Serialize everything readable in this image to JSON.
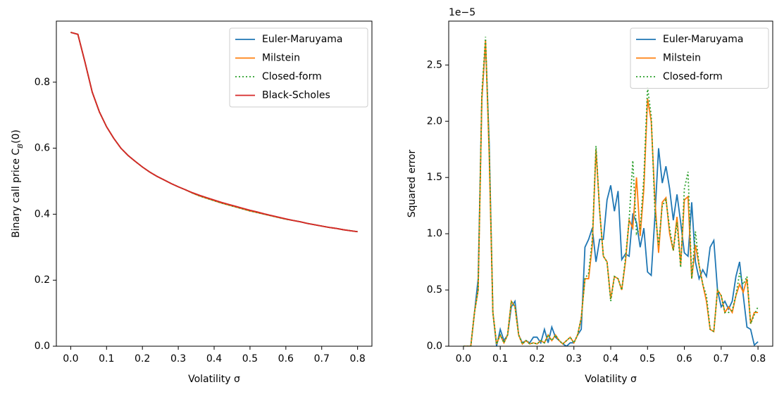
{
  "chart_data": [
    {
      "type": "line",
      "xlabel": "Volatility σ",
      "ylabel": "Binary call price C",
      "ylabel_subscript": "B",
      "ylabel_suffix": "(0)",
      "xlim": [
        -0.04,
        0.84
      ],
      "ylim": [
        0,
        0.985
      ],
      "xticks": [
        {
          "value": 0,
          "label": "0.0"
        },
        {
          "value": 0.1,
          "label": "0.1"
        },
        {
          "value": 0.2,
          "label": "0.2"
        },
        {
          "value": 0.3,
          "label": "0.3"
        },
        {
          "value": 0.4,
          "label": "0.4"
        },
        {
          "value": 0.5,
          "label": "0.5"
        },
        {
          "value": 0.6,
          "label": "0.6"
        },
        {
          "value": 0.7,
          "label": "0.7"
        },
        {
          "value": 0.8,
          "label": "0.8"
        }
      ],
      "yticks": [
        {
          "value": 0,
          "label": "0.0"
        },
        {
          "value": 0.2,
          "label": "0.2"
        },
        {
          "value": 0.4,
          "label": "0.4"
        },
        {
          "value": 0.6,
          "label": "0.6"
        },
        {
          "value": 0.8,
          "label": "0.8"
        }
      ],
      "legend": "upper right",
      "x": [
        0,
        0.02,
        0.04,
        0.06,
        0.08,
        0.1,
        0.12,
        0.14,
        0.16,
        0.18,
        0.2,
        0.22,
        0.24,
        0.26,
        0.28,
        0.3,
        0.32,
        0.34,
        0.36,
        0.38,
        0.4,
        0.42,
        0.44,
        0.46,
        0.48,
        0.5,
        0.52,
        0.54,
        0.56,
        0.58,
        0.6,
        0.62,
        0.64,
        0.66,
        0.68,
        0.7,
        0.72,
        0.74,
        0.76,
        0.78,
        0.8
      ],
      "series": [
        {
          "name": "Euler-Maruyama",
          "color": "#1f77b4",
          "dash": "solid",
          "values": [
            0.951,
            0.945,
            0.86,
            0.77,
            0.71,
            0.665,
            0.63,
            0.6,
            0.578,
            0.56,
            0.543,
            0.528,
            0.515,
            0.504,
            0.493,
            0.483,
            0.474,
            0.464,
            0.455,
            0.448,
            0.441,
            0.434,
            0.428,
            0.422,
            0.416,
            0.41,
            0.405,
            0.4,
            0.395,
            0.39,
            0.385,
            0.381,
            0.377,
            0.372,
            0.368,
            0.364,
            0.36,
            0.357,
            0.353,
            0.35,
            0.347
          ]
        },
        {
          "name": "Milstein",
          "color": "#ff7f0e",
          "dash": "solid",
          "values": [
            0.951,
            0.945,
            0.86,
            0.77,
            0.71,
            0.665,
            0.63,
            0.6,
            0.578,
            0.56,
            0.543,
            0.528,
            0.515,
            0.504,
            0.493,
            0.483,
            0.474,
            0.464,
            0.455,
            0.448,
            0.441,
            0.434,
            0.428,
            0.422,
            0.416,
            0.41,
            0.405,
            0.4,
            0.395,
            0.39,
            0.385,
            0.381,
            0.377,
            0.372,
            0.368,
            0.364,
            0.36,
            0.357,
            0.353,
            0.35,
            0.347
          ]
        },
        {
          "name": "Closed-form",
          "color": "#2ca02c",
          "dash": "dotted",
          "values": [
            0.951,
            0.945,
            0.86,
            0.77,
            0.71,
            0.665,
            0.63,
            0.6,
            0.578,
            0.56,
            0.543,
            0.528,
            0.515,
            0.504,
            0.493,
            0.483,
            0.474,
            0.464,
            0.455,
            0.448,
            0.441,
            0.434,
            0.428,
            0.422,
            0.416,
            0.41,
            0.405,
            0.4,
            0.395,
            0.39,
            0.385,
            0.381,
            0.377,
            0.372,
            0.368,
            0.364,
            0.36,
            0.357,
            0.353,
            0.35,
            0.347
          ]
        },
        {
          "name": "Black-Scholes",
          "color": "#d62728",
          "dash": "solid",
          "values": [
            0.951,
            0.945,
            0.86,
            0.77,
            0.71,
            0.665,
            0.63,
            0.6,
            0.578,
            0.56,
            0.543,
            0.528,
            0.515,
            0.504,
            0.493,
            0.483,
            0.474,
            0.465,
            0.457,
            0.45,
            0.443,
            0.436,
            0.43,
            0.424,
            0.418,
            0.412,
            0.407,
            0.401,
            0.396,
            0.391,
            0.386,
            0.381,
            0.377,
            0.372,
            0.368,
            0.364,
            0.36,
            0.357,
            0.353,
            0.35,
            0.347
          ]
        }
      ]
    },
    {
      "type": "line",
      "xlabel": "Volatility σ",
      "ylabel": "Squared error",
      "offset_text": "1e−5",
      "xlim": [
        -0.04,
        0.84
      ],
      "ylim": [
        0,
        2.89
      ],
      "xticks": [
        {
          "value": 0,
          "label": "0.0"
        },
        {
          "value": 0.1,
          "label": "0.1"
        },
        {
          "value": 0.2,
          "label": "0.2"
        },
        {
          "value": 0.3,
          "label": "0.3"
        },
        {
          "value": 0.4,
          "label": "0.4"
        },
        {
          "value": 0.5,
          "label": "0.5"
        },
        {
          "value": 0.6,
          "label": "0.6"
        },
        {
          "value": 0.7,
          "label": "0.7"
        },
        {
          "value": 0.8,
          "label": "0.8"
        }
      ],
      "yticks": [
        {
          "value": 0,
          "label": "0.0"
        },
        {
          "value": 0.5,
          "label": "0.5"
        },
        {
          "value": 1,
          "label": "1.0"
        },
        {
          "value": 1.5,
          "label": "1.5"
        },
        {
          "value": 2,
          "label": "2.0"
        },
        {
          "value": 2.5,
          "label": "2.5"
        }
      ],
      "legend": "upper right",
      "x": [
        0,
        0.01,
        0.02,
        0.03,
        0.04,
        0.05,
        0.06,
        0.07,
        0.08,
        0.09,
        0.1,
        0.11,
        0.12,
        0.13,
        0.14,
        0.15,
        0.16,
        0.17,
        0.18,
        0.19,
        0.2,
        0.21,
        0.22,
        0.23,
        0.24,
        0.25,
        0.26,
        0.27,
        0.28,
        0.29,
        0.3,
        0.31,
        0.32,
        0.33,
        0.34,
        0.35,
        0.36,
        0.37,
        0.38,
        0.39,
        0.4,
        0.41,
        0.42,
        0.43,
        0.44,
        0.45,
        0.46,
        0.47,
        0.48,
        0.49,
        0.5,
        0.51,
        0.52,
        0.53,
        0.54,
        0.55,
        0.56,
        0.57,
        0.58,
        0.59,
        0.6,
        0.61,
        0.62,
        0.63,
        0.64,
        0.65,
        0.66,
        0.67,
        0.68,
        0.69,
        0.7,
        0.71,
        0.72,
        0.73,
        0.74,
        0.75,
        0.76,
        0.77,
        0.78,
        0.79,
        0.8
      ],
      "series": [
        {
          "name": "Euler-Maruyama",
          "color": "#1f77b4",
          "dash": "solid",
          "values": [
            0,
            0,
            0,
            0.3,
            0.6,
            2.2,
            2.7,
            1.8,
            0.3,
            0,
            0.15,
            0.05,
            0.1,
            0.35,
            0.4,
            0.1,
            0.03,
            0.05,
            0.03,
            0.08,
            0.08,
            0.03,
            0.15,
            0.03,
            0.17,
            0.08,
            0.05,
            0.02,
            0,
            0.03,
            0.03,
            0.1,
            0.15,
            0.88,
            0.95,
            1.05,
            0.75,
            0.95,
            0.95,
            1.3,
            1.43,
            1.2,
            1.38,
            0.77,
            0.82,
            0.8,
            1.18,
            1.1,
            0.88,
            1.05,
            0.66,
            0.63,
            1.15,
            1.76,
            1.45,
            1.6,
            1.4,
            1.12,
            1.35,
            1.1,
            0.83,
            0.8,
            1.28,
            0.75,
            0.6,
            0.68,
            0.62,
            0.88,
            0.94,
            0.5,
            0.35,
            0.4,
            0.33,
            0.4,
            0.62,
            0.75,
            0.45,
            0.17,
            0.15,
            0.01,
            0.04
          ]
        },
        {
          "name": "Milstein",
          "color": "#ff7f0e",
          "dash": "solid",
          "values": [
            0,
            0,
            0,
            0.3,
            0.5,
            2.2,
            2.72,
            1.7,
            0.3,
            0.02,
            0.1,
            0.03,
            0.1,
            0.4,
            0.35,
            0.1,
            0.02,
            0.05,
            0.02,
            0.03,
            0.02,
            0.05,
            0.03,
            0.1,
            0.05,
            0.1,
            0.05,
            0.02,
            0.05,
            0.08,
            0.03,
            0.1,
            0.25,
            0.6,
            0.6,
            0.9,
            1.75,
            1.2,
            0.8,
            0.75,
            0.42,
            0.62,
            0.6,
            0.5,
            0.75,
            1.12,
            1.05,
            1.5,
            0.98,
            1.4,
            2.2,
            2.0,
            1.3,
            0.83,
            1.28,
            1.32,
            1.0,
            0.85,
            1.15,
            0.72,
            1.3,
            1.33,
            0.6,
            0.9,
            0.72,
            0.55,
            0.4,
            0.15,
            0.13,
            0.5,
            0.45,
            0.3,
            0.35,
            0.3,
            0.45,
            0.55,
            0.48,
            0.6,
            0.2,
            0.3,
            0.3
          ]
        },
        {
          "name": "Closed-form",
          "color": "#2ca02c",
          "dash": "dotted",
          "values": [
            0,
            0,
            0,
            0.3,
            0.5,
            2.25,
            2.75,
            1.75,
            0.3,
            0.02,
            0.1,
            0.03,
            0.1,
            0.4,
            0.35,
            0.1,
            0.02,
            0.05,
            0.02,
            0.03,
            0.02,
            0.05,
            0.03,
            0.1,
            0.05,
            0.1,
            0.05,
            0.02,
            0.05,
            0.08,
            0.03,
            0.1,
            0.25,
            0.6,
            0.65,
            0.95,
            1.78,
            1.2,
            0.8,
            0.75,
            0.4,
            0.62,
            0.6,
            0.5,
            0.78,
            1.12,
            1.65,
            1.0,
            1.05,
            1.5,
            2.3,
            2.05,
            1.2,
            0.9,
            1.25,
            1.3,
            1.05,
            0.85,
            1.1,
            0.7,
            1.4,
            1.55,
            0.6,
            1.02,
            0.72,
            0.55,
            0.45,
            0.15,
            0.13,
            0.5,
            0.45,
            0.3,
            0.3,
            0.32,
            0.45,
            0.65,
            0.55,
            0.62,
            0.2,
            0.28,
            0.35
          ]
        }
      ]
    }
  ]
}
